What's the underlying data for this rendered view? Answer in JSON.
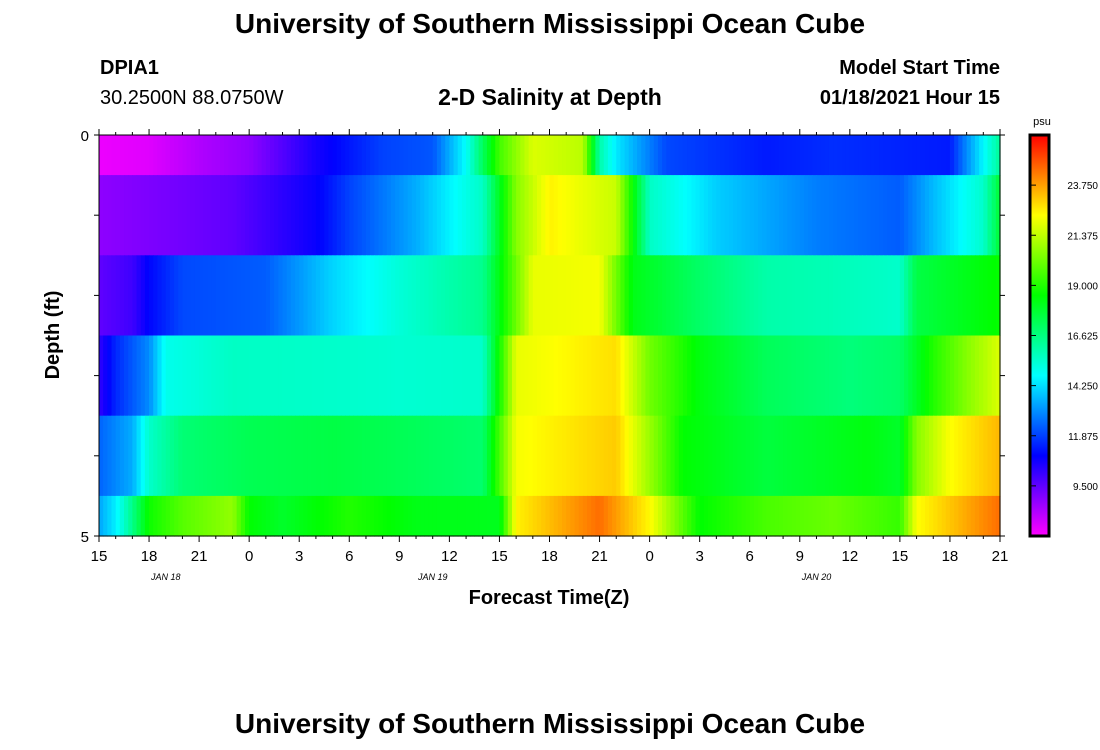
{
  "header": {
    "title": "University of Southern Mississippi Ocean Cube",
    "station_id": "DPIA1",
    "coordinates": "30.2500N 88.0750W",
    "subtitle": "2-D Salinity at Depth",
    "model_start_label": "Model Start Time",
    "model_start_value": "01/18/2021 Hour 15"
  },
  "footer": {
    "title": "University of Southern Mississippi Ocean Cube"
  },
  "chart_data": {
    "type": "heatmap",
    "title": "2-D Salinity at Depth",
    "xlabel": "Forecast Time(Z)",
    "ylabel": "Depth (ft)",
    "x_hours": [
      15,
      16,
      17,
      18,
      19,
      20,
      21,
      22,
      23,
      0,
      1,
      2,
      3,
      4,
      5,
      6,
      7,
      8,
      9,
      10,
      11,
      12,
      13,
      14,
      15,
      16,
      17,
      18,
      19,
      20,
      21,
      22,
      23,
      0,
      1,
      2,
      3,
      4,
      5,
      6,
      7,
      8,
      9,
      10,
      11,
      12,
      13,
      14,
      15,
      16,
      17,
      18,
      19,
      20,
      21
    ],
    "x_tick_labels": [
      "15",
      "18",
      "21",
      "0",
      "3",
      "6",
      "9",
      "12",
      "15",
      "18",
      "21",
      "0",
      "3",
      "6",
      "9",
      "12",
      "15",
      "18",
      "21"
    ],
    "date_labels": [
      {
        "text": "JAN 18",
        "hour_index": 4
      },
      {
        "text": "JAN 19",
        "hour_index": 20
      },
      {
        "text": "JAN 20",
        "hour_index": 43
      }
    ],
    "y_tick_labels": [
      "0",
      "5"
    ],
    "y_range": [
      0,
      5
    ],
    "depth_bins": 5,
    "colorbar": {
      "unit": "psu",
      "min": 7.125,
      "max": 26.125,
      "tick_labels": [
        "23.750",
        "21.375",
        "19.000",
        "16.625",
        "14.250",
        "11.875",
        "9.500"
      ]
    },
    "series": [
      {
        "name": "0 ft",
        "keys": [
          [
            0,
            7.4
          ],
          [
            3,
            7.6
          ],
          [
            6,
            8.3
          ],
          [
            9,
            8.8
          ],
          [
            13,
            10.6
          ],
          [
            17,
            11.9
          ],
          [
            20,
            12.2
          ],
          [
            22,
            14.8
          ],
          [
            24,
            19.5
          ],
          [
            26,
            21.8
          ],
          [
            29,
            21.3
          ],
          [
            30,
            16.0
          ],
          [
            31,
            14.4
          ],
          [
            34,
            12.0
          ],
          [
            40,
            11.3
          ],
          [
            44,
            11.6
          ],
          [
            51,
            11.3
          ],
          [
            52,
            13.0
          ],
          [
            54,
            16.3
          ]
        ]
      },
      {
        "name": "1 ft",
        "keys": [
          [
            0,
            8.8
          ],
          [
            8,
            9.5
          ],
          [
            13,
            10.8
          ],
          [
            15,
            11.9
          ],
          [
            19,
            13.5
          ],
          [
            23,
            15.6
          ],
          [
            25,
            20.5
          ],
          [
            27,
            22.5
          ],
          [
            31,
            21.5
          ],
          [
            33,
            15.6
          ],
          [
            37,
            14.0
          ],
          [
            43,
            12.8
          ],
          [
            48,
            12.3
          ],
          [
            50,
            13.7
          ],
          [
            53,
            15.5
          ],
          [
            54,
            17.8
          ]
        ]
      },
      {
        "name": "2 ft",
        "keys": [
          [
            0,
            9.5
          ],
          [
            2,
            10.0
          ],
          [
            3,
            11.0
          ],
          [
            5,
            12.0
          ],
          [
            10,
            12.3
          ],
          [
            14,
            14.1
          ],
          [
            18,
            15.3
          ],
          [
            23,
            16.4
          ],
          [
            26,
            22.0
          ],
          [
            30,
            22.2
          ],
          [
            32,
            18.2
          ],
          [
            36,
            17.0
          ],
          [
            40,
            16.0
          ],
          [
            44,
            15.8
          ],
          [
            48,
            15.5
          ],
          [
            49,
            17.5
          ],
          [
            54,
            18.6
          ]
        ]
      },
      {
        "name": "3 ft",
        "keys": [
          [
            0,
            10.2
          ],
          [
            1,
            11.5
          ],
          [
            3,
            13.0
          ],
          [
            4,
            15.0
          ],
          [
            8,
            15.6
          ],
          [
            14,
            15.5
          ],
          [
            18,
            15.4
          ],
          [
            23,
            15.5
          ],
          [
            25,
            22.0
          ],
          [
            31,
            22.8
          ],
          [
            33,
            20.2
          ],
          [
            36,
            18.3
          ],
          [
            40,
            17.2
          ],
          [
            45,
            16.7
          ],
          [
            48,
            17.0
          ],
          [
            50,
            19.0
          ],
          [
            52,
            20.5
          ],
          [
            54,
            21.8
          ]
        ]
      },
      {
        "name": "4 ft",
        "keys": [
          [
            0,
            12.4
          ],
          [
            2,
            13.5
          ],
          [
            3,
            15.5
          ],
          [
            5,
            16.8
          ],
          [
            9,
            17.3
          ],
          [
            14,
            17.5
          ],
          [
            19,
            17.2
          ],
          [
            23,
            16.9
          ],
          [
            25,
            22.2
          ],
          [
            31,
            23.1
          ],
          [
            35,
            18.5
          ],
          [
            40,
            17.6
          ],
          [
            46,
            18.3
          ],
          [
            48,
            17.9
          ],
          [
            49,
            20.5
          ],
          [
            51,
            22.3
          ],
          [
            54,
            23.4
          ]
        ]
      },
      {
        "name": "5 ft",
        "keys": [
          [
            0,
            13.4
          ],
          [
            1,
            14.5
          ],
          [
            2,
            16.5
          ],
          [
            3,
            18.7
          ],
          [
            5,
            19.8
          ],
          [
            8,
            20.7
          ],
          [
            9,
            18.5
          ],
          [
            11,
            17.9
          ],
          [
            15,
            19.0
          ],
          [
            19,
            18.2
          ],
          [
            24,
            18.1
          ],
          [
            25,
            22.5
          ],
          [
            30,
            24.5
          ],
          [
            33,
            22.4
          ],
          [
            36,
            18.5
          ],
          [
            40,
            19.6
          ],
          [
            44,
            20.1
          ],
          [
            48,
            19.3
          ],
          [
            49,
            22.3
          ],
          [
            54,
            24.5
          ]
        ]
      }
    ]
  }
}
